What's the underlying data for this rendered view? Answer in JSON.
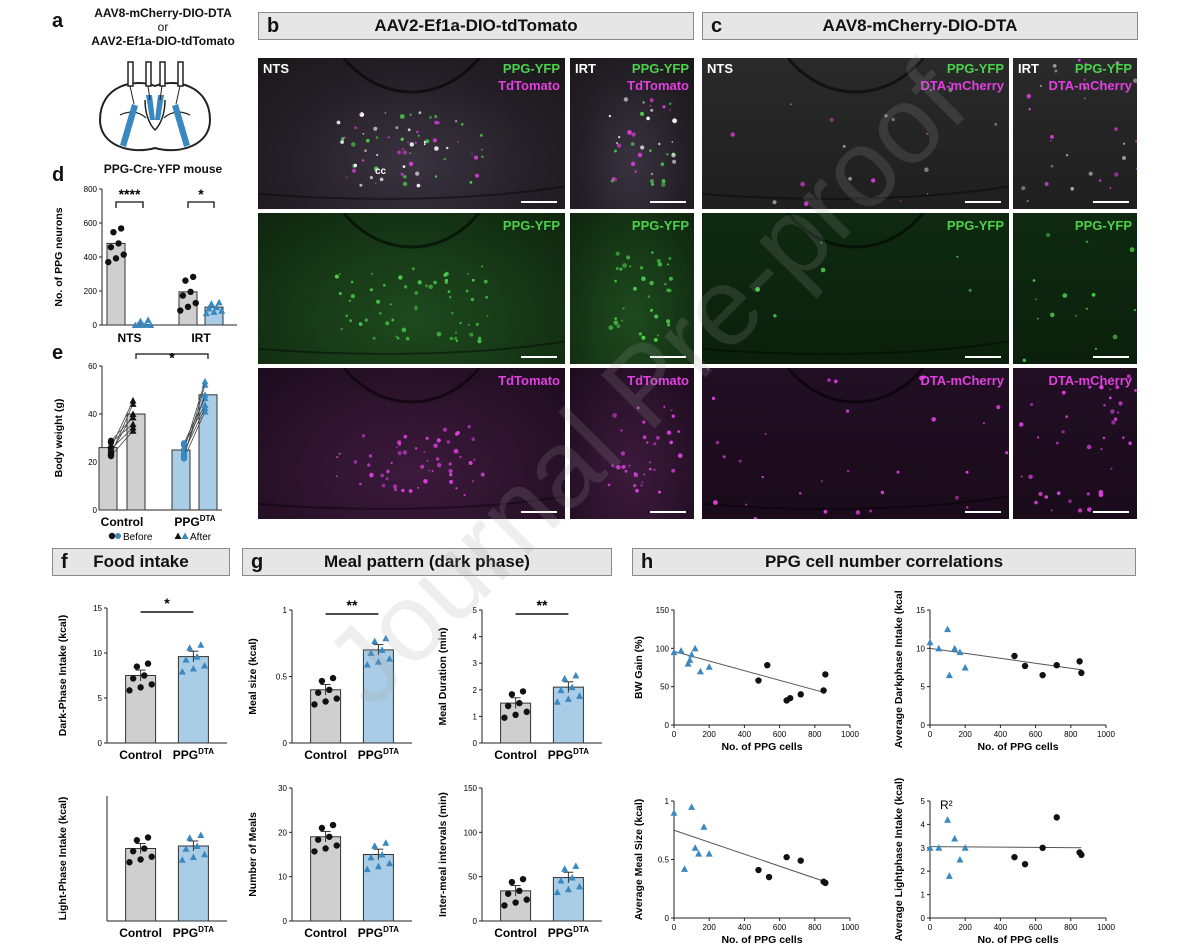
{
  "panel_a": {
    "letter": "a",
    "line1": "AAV8-mCherry-DIO-DTA",
    "line2": "or",
    "line3": "AAV2-Ef1a-DIO-tdTomato",
    "mouse": "PPG-Cre-YFP mouse"
  },
  "panel_b": {
    "letter": "b",
    "title": "AAV2-Ef1a-DIO-tdTomato"
  },
  "panel_c": {
    "letter": "c",
    "title": "AAV8-mCherry-DIO-DTA"
  },
  "micro": {
    "nts": "NTS",
    "irt": "IRT",
    "ppg": "PPG-YFP",
    "td": "TdTomato",
    "dta": "DTA-mCherry",
    "cc": "cc"
  },
  "panel_d": {
    "letter": "d",
    "ylabel": "No. of PPG neurons",
    "sig1": "****",
    "sig2": "*"
  },
  "panel_e": {
    "letter": "e",
    "ylabel": "Body weight (g)",
    "sig": "*",
    "legend_before": "Before",
    "legend_after": "After"
  },
  "panel_f": {
    "letter": "f",
    "title": "Food intake",
    "sig": "*"
  },
  "panel_g": {
    "letter": "g",
    "title": "Meal pattern (dark phase)",
    "sig1": "**",
    "sig2": "**"
  },
  "panel_h": {
    "letter": "h",
    "title": "PPG cell number correlations",
    "r2": "R²"
  },
  "labels": {
    "control": "Control",
    "ppg": "PPG",
    "dta": "DTA",
    "nts": "NTS",
    "irt": "IRT",
    "xcells": "No. of PPG cells"
  },
  "colors": {
    "control": "#cfcfcf",
    "ppgdta": "#a9cde6",
    "blue": "#3a88c0",
    "green": "#4bd24b",
    "magenta": "#e040e0"
  },
  "chart_data": [
    {
      "id": "d",
      "type": "bar",
      "categories": [
        "NTS",
        "IRT"
      ],
      "series": [
        {
          "name": "Control",
          "values": [
            480,
            195
          ]
        },
        {
          "name": "PPGDTA",
          "values": [
            2,
            105
          ]
        }
      ],
      "ylim": [
        0,
        800
      ],
      "yticks": [
        0,
        200,
        400,
        600,
        800
      ],
      "ylabel": "No. of PPG neurons"
    },
    {
      "id": "e",
      "type": "bar",
      "categories": [
        "Control",
        "PPGDTA"
      ],
      "series": [
        {
          "name": "Before",
          "values": [
            26,
            25
          ]
        },
        {
          "name": "After",
          "values": [
            40,
            48
          ]
        }
      ],
      "ylim": [
        0,
        60
      ],
      "yticks": [
        0,
        20,
        40,
        60
      ],
      "ylabel": "Body weight (g)"
    },
    {
      "id": "f1",
      "type": "bar",
      "categories": [
        "Control",
        "PPGDTA"
      ],
      "values": [
        7.5,
        9.6
      ],
      "ylim": [
        0,
        15
      ],
      "yticks": [
        0,
        5,
        10,
        15
      ],
      "ylabel": "Dark-Phase Intake (kcal)"
    },
    {
      "id": "f2",
      "type": "bar",
      "categories": [
        "Control",
        "PPGDTA"
      ],
      "values": [
        2.9,
        3.0
      ],
      "ylim": [
        0,
        5
      ],
      "yticks": [],
      "ylabel": "Light-Phase Intake (kcal)"
    },
    {
      "id": "g1",
      "type": "bar",
      "categories": [
        "Control",
        "PPGDTA"
      ],
      "values": [
        0.4,
        0.7
      ],
      "ylim": [
        0,
        1.0
      ],
      "yticks": [
        0.0,
        0.5,
        1.0
      ],
      "ylabel": "Meal size (kcal)"
    },
    {
      "id": "g2",
      "type": "bar",
      "categories": [
        "Control",
        "PPGDTA"
      ],
      "values": [
        1.5,
        2.1
      ],
      "ylim": [
        0,
        5
      ],
      "yticks": [
        0,
        1,
        2,
        3,
        4,
        5
      ],
      "ylabel": "Meal Duration (min)"
    },
    {
      "id": "g3",
      "type": "bar",
      "categories": [
        "Control",
        "PPGDTA"
      ],
      "values": [
        19,
        15
      ],
      "ylim": [
        0,
        30
      ],
      "yticks": [
        0,
        10,
        20,
        30
      ],
      "ylabel": "Number of Meals"
    },
    {
      "id": "g4",
      "type": "bar",
      "categories": [
        "Control",
        "PPGDTA"
      ],
      "values": [
        34,
        49
      ],
      "ylim": [
        0,
        150
      ],
      "yticks": [
        0,
        50,
        100,
        150
      ],
      "ylabel": "Inter-meal intervals (min)"
    },
    {
      "id": "h1",
      "type": "scatter",
      "xlabel": "No. of PPG cells",
      "ylabel": "BW Gain (%)",
      "xlim": [
        0,
        1000
      ],
      "ylim": [
        0,
        150
      ],
      "xticks": [
        0,
        200,
        400,
        600,
        800,
        1000
      ],
      "yticks": [
        0,
        50,
        100,
        150
      ],
      "dta": [
        [
          0,
          95
        ],
        [
          40,
          97
        ],
        [
          80,
          80
        ],
        [
          100,
          92
        ],
        [
          120,
          100
        ],
        [
          150,
          70
        ],
        [
          200,
          76
        ],
        [
          90,
          85
        ]
      ],
      "control": [
        [
          480,
          58
        ],
        [
          530,
          78
        ],
        [
          640,
          32
        ],
        [
          660,
          35
        ],
        [
          720,
          40
        ],
        [
          860,
          66
        ],
        [
          850,
          45
        ]
      ],
      "fit": [
        [
          0,
          96
        ],
        [
          860,
          42
        ]
      ]
    },
    {
      "id": "h2",
      "type": "scatter",
      "xlabel": "No. of PPG cells",
      "ylabel": "Average Darkphase Intake (kcal)",
      "xlim": [
        0,
        1000
      ],
      "ylim": [
        0,
        15
      ],
      "xticks": [
        0,
        200,
        400,
        600,
        800,
        1000
      ],
      "yticks": [
        0,
        5,
        10,
        15
      ],
      "dta": [
        [
          0,
          10.8
        ],
        [
          50,
          10
        ],
        [
          100,
          12.5
        ],
        [
          110,
          6.5
        ],
        [
          140,
          10
        ],
        [
          170,
          9.5
        ],
        [
          200,
          7.5
        ]
      ],
      "control": [
        [
          480,
          9
        ],
        [
          540,
          7.7
        ],
        [
          640,
          6.5
        ],
        [
          720,
          7.8
        ],
        [
          850,
          8.3
        ],
        [
          860,
          6.8
        ]
      ],
      "fit": [
        [
          0,
          10
        ],
        [
          860,
          7.2
        ]
      ]
    },
    {
      "id": "h3",
      "type": "scatter",
      "xlabel": "No. of PPG cells",
      "ylabel": "Average Meal Size (kcal)",
      "xlim": [
        0,
        1000
      ],
      "ylim": [
        0,
        1.0
      ],
      "xticks": [
        0,
        200,
        400,
        600,
        800,
        1000
      ],
      "yticks": [
        0.0,
        0.5,
        1.0
      ],
      "dta": [
        [
          0,
          0.9
        ],
        [
          60,
          0.42
        ],
        [
          100,
          0.95
        ],
        [
          120,
          0.6
        ],
        [
          140,
          0.55
        ],
        [
          170,
          0.78
        ],
        [
          200,
          0.55
        ]
      ],
      "control": [
        [
          480,
          0.41
        ],
        [
          540,
          0.35
        ],
        [
          640,
          0.52
        ],
        [
          720,
          0.49
        ],
        [
          850,
          0.31
        ],
        [
          860,
          0.3
        ]
      ],
      "fit": [
        [
          0,
          0.75
        ],
        [
          860,
          0.31
        ]
      ]
    },
    {
      "id": "h4",
      "type": "scatter",
      "xlabel": "No. of PPG cells",
      "ylabel": "Average Lightphase Intake (kcal)",
      "xlim": [
        0,
        1000
      ],
      "ylim": [
        0,
        5
      ],
      "xticks": [
        0,
        200,
        400,
        600,
        800,
        1000
      ],
      "yticks": [
        0,
        1,
        2,
        3,
        4,
        5
      ],
      "dta": [
        [
          0,
          3
        ],
        [
          50,
          3
        ],
        [
          100,
          4.2
        ],
        [
          110,
          1.8
        ],
        [
          140,
          3.4
        ],
        [
          170,
          2.5
        ],
        [
          200,
          3
        ]
      ],
      "control": [
        [
          480,
          2.6
        ],
        [
          540,
          2.3
        ],
        [
          640,
          3
        ],
        [
          720,
          4.3
        ],
        [
          850,
          2.8
        ],
        [
          860,
          2.7
        ]
      ],
      "fit": [
        [
          0,
          3.05
        ],
        [
          860,
          3.0
        ]
      ]
    }
  ]
}
